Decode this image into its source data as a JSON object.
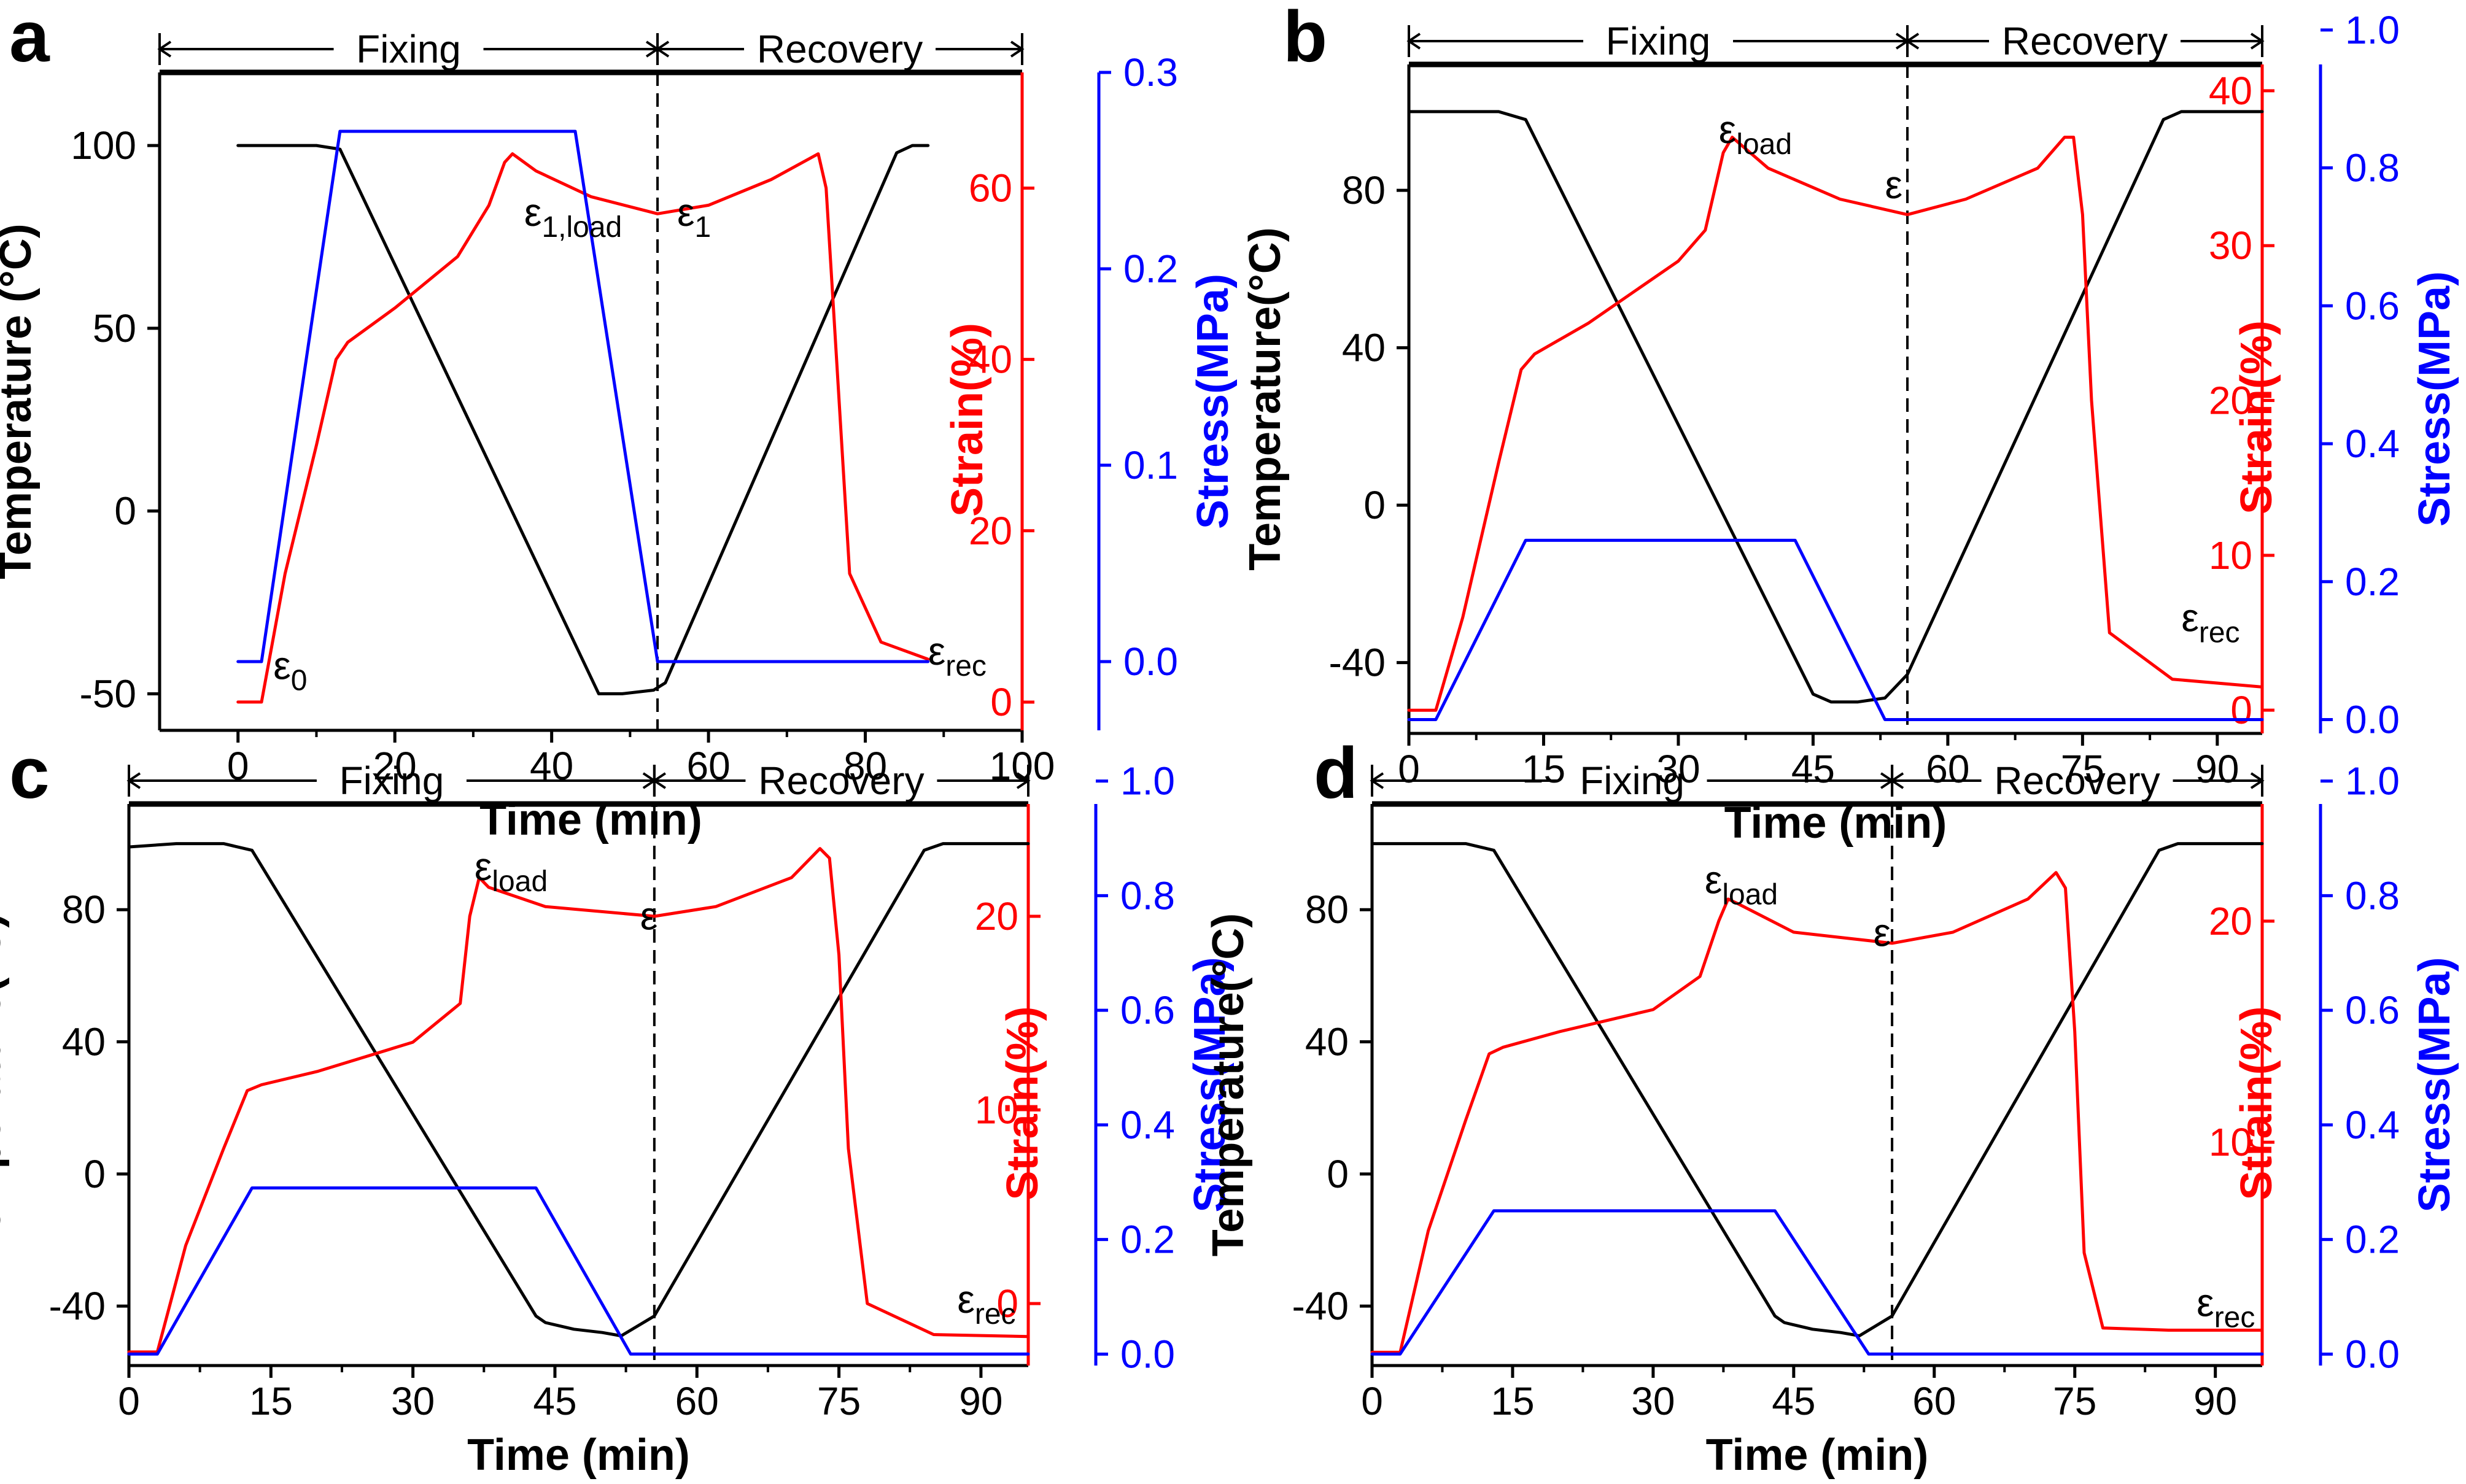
{
  "figure": {
    "colors": {
      "temperature": "#000000",
      "strain": "#ff0000",
      "stress": "#0000ff"
    },
    "phase_labels": {
      "fixing": "Fixing",
      "recovery": "Recovery"
    }
  },
  "chart_data": [
    {
      "panel_label": "a",
      "type": "line",
      "xlabel": "Time (min)",
      "xlim": [
        -10,
        100
      ],
      "xticks": [
        0,
        20,
        40,
        60,
        80,
        100
      ],
      "ylabel": "Temperature (°C)",
      "ylim": [
        -60,
        120
      ],
      "yticks": [
        -50,
        0,
        50,
        100
      ],
      "strain_axis": {
        "label": "Strain(%)",
        "lim": [
          -3.3,
          73.5
        ],
        "ticks": [
          0,
          20,
          40,
          60
        ]
      },
      "stress_axis": {
        "label": "Stress(MPa)",
        "lim": [
          -0.035,
          0.3
        ],
        "ticks": [
          0.0,
          0.1,
          0.2,
          0.3
        ]
      },
      "divider_x": 53.5,
      "annotations": [
        {
          "base": "ε",
          "sub": "0",
          "x": 4.5,
          "y": -46
        },
        {
          "base": "ε",
          "sub": "1,load",
          "x": 36.5,
          "y": 78
        },
        {
          "base": "ε",
          "sub": "1",
          "x": 56,
          "y": 78
        },
        {
          "base": "ε",
          "sub": "rec",
          "x": 88,
          "y": -42
        }
      ],
      "series": [
        {
          "name": "Temperature",
          "axis": "temperature",
          "x": [
            0,
            5,
            10,
            13,
            46,
            49,
            53,
            54.5,
            84,
            86,
            88
          ],
          "y": [
            100,
            100,
            100,
            99,
            -50,
            -50,
            -49,
            -47,
            98,
            100,
            100
          ]
        },
        {
          "name": "Strain",
          "axis": "strain",
          "x": [
            0,
            3,
            6,
            10,
            12.5,
            14,
            20,
            28,
            32,
            34,
            35,
            38,
            45,
            53.5,
            60,
            68,
            72,
            74,
            75,
            76,
            78,
            82,
            88
          ],
          "y": [
            0,
            0,
            15,
            30,
            40,
            42,
            46,
            52,
            58,
            63,
            64,
            62,
            59,
            57,
            58,
            61,
            63,
            64,
            60,
            45,
            15,
            7,
            5
          ]
        },
        {
          "name": "Stress",
          "axis": "stress",
          "x": [
            0,
            3,
            13,
            43,
            53.5,
            88
          ],
          "y": [
            0,
            0,
            0.27,
            0.27,
            0,
            0
          ]
        }
      ]
    },
    {
      "panel_label": "b",
      "type": "line",
      "xlabel": "Time (min)",
      "xlim": [
        0,
        95
      ],
      "xticks": [
        0,
        15,
        30,
        45,
        60,
        75,
        90
      ],
      "ylabel": "Temperature(°C)",
      "ylim": [
        -58,
        112
      ],
      "yticks": [
        -40,
        0,
        40,
        80
      ],
      "strain_axis": {
        "label": "Strain(%)",
        "lim": [
          -1.5,
          41.7
        ],
        "ticks": [
          0,
          10,
          20,
          30,
          40
        ]
      },
      "stress_axis": {
        "label": "Stress(MPa)",
        "lim": [
          -0.02,
          0.95
        ],
        "ticks": [
          0.0,
          0.2,
          0.4,
          0.6,
          0.8,
          1.0
        ]
      },
      "divider_x": 55.5,
      "annotations": [
        {
          "base": "ε",
          "sub": "load",
          "x": 34.5,
          "y": 92
        },
        {
          "base": "ε",
          "sub": "",
          "x": 53,
          "y": 78
        },
        {
          "base": "ε",
          "sub": "rec",
          "x": 86,
          "y": -32
        }
      ],
      "series": [
        {
          "name": "Temperature",
          "axis": "temperature",
          "x": [
            0,
            5,
            10,
            13,
            45,
            47,
            50,
            53,
            55.5,
            84,
            86,
            95
          ],
          "y": [
            100,
            100,
            100,
            98,
            -48,
            -50,
            -50,
            -49,
            -43,
            98,
            100,
            100
          ]
        },
        {
          "name": "Strain",
          "axis": "strain",
          "x": [
            0,
            3,
            6,
            10,
            12.5,
            14,
            20,
            30,
            33,
            35,
            36,
            40,
            48,
            55.5,
            62,
            70,
            73,
            74,
            75,
            76,
            78,
            85,
            95
          ],
          "y": [
            0,
            0,
            6,
            16,
            22,
            23,
            25,
            29,
            31,
            36,
            37,
            35,
            33,
            32,
            33,
            35,
            37,
            37,
            32,
            20,
            5,
            2,
            1.5
          ]
        },
        {
          "name": "Stress",
          "axis": "stress",
          "x": [
            0,
            3,
            13,
            43,
            53,
            95
          ],
          "y": [
            0,
            0,
            0.26,
            0.26,
            0,
            0
          ]
        }
      ]
    },
    {
      "panel_label": "c",
      "type": "line",
      "xlabel": "Time (min)",
      "xlim": [
        0,
        95
      ],
      "xticks": [
        0,
        15,
        30,
        45,
        60,
        75,
        90
      ],
      "ylabel": "Temperature(°C)",
      "ylim": [
        -58,
        112
      ],
      "yticks": [
        -40,
        0,
        40,
        80
      ],
      "strain_axis": {
        "label": "Strain(%)",
        "lim": [
          -3.2,
          25.8
        ],
        "ticks": [
          0,
          10,
          20
        ]
      },
      "stress_axis": {
        "label": "Stress(MPa)",
        "lim": [
          -0.02,
          0.96
        ],
        "ticks": [
          0.0,
          0.2,
          0.4,
          0.6,
          0.8,
          1.0
        ]
      },
      "divider_x": 55.5,
      "annotations": [
        {
          "base": "ε",
          "sub": "load",
          "x": 36.5,
          "y": 89
        },
        {
          "base": "ε",
          "sub": "",
          "x": 54,
          "y": 74
        },
        {
          "base": "ε",
          "sub": "rec",
          "x": 87.5,
          "y": -42
        }
      ],
      "series": [
        {
          "name": "Temperature",
          "axis": "temperature",
          "x": [
            0,
            5,
            10,
            13,
            43,
            44,
            47,
            50,
            52,
            55.5,
            84,
            86,
            95
          ],
          "y": [
            99,
            100,
            100,
            98,
            -43,
            -45,
            -47,
            -48,
            -49,
            -43,
            98,
            100,
            100
          ]
        },
        {
          "name": "Strain",
          "axis": "strain",
          "x": [
            0,
            3,
            6,
            10,
            12.5,
            14,
            20,
            30,
            35,
            36,
            37,
            38,
            44,
            55.5,
            62,
            70,
            73,
            74,
            75,
            76,
            78,
            85,
            95
          ],
          "y": [
            -2.5,
            -2.5,
            3,
            8,
            11,
            11.3,
            12,
            13.5,
            15.5,
            20,
            22,
            21.5,
            20.5,
            20,
            20.5,
            22,
            23.5,
            23,
            18,
            8,
            0,
            -1.6,
            -1.7
          ]
        },
        {
          "name": "Stress",
          "axis": "stress",
          "x": [
            0,
            3,
            13,
            43,
            53,
            95
          ],
          "y": [
            0,
            0,
            0.29,
            0.29,
            0,
            0
          ]
        }
      ]
    },
    {
      "panel_label": "d",
      "type": "line",
      "xlabel": "Time (min)",
      "xlim": [
        0,
        95
      ],
      "xticks": [
        0,
        15,
        30,
        45,
        60,
        75,
        90
      ],
      "ylabel": "Temperature(°C)",
      "ylim": [
        -58,
        112
      ],
      "yticks": [
        -40,
        0,
        40,
        80
      ],
      "strain_axis": {
        "label": "Strain(%)",
        "lim": [
          -0.1,
          25.3
        ],
        "ticks": [
          10,
          20
        ]
      },
      "stress_axis": {
        "label": "Stress(MPa)",
        "lim": [
          -0.02,
          0.96
        ],
        "ticks": [
          0.0,
          0.2,
          0.4,
          0.6,
          0.8,
          1.0
        ]
      },
      "divider_x": 55.5,
      "annotations": [
        {
          "base": "ε",
          "sub": "load",
          "x": 35.5,
          "y": 85
        },
        {
          "base": "ε",
          "sub": "",
          "x": 53.5,
          "y": 69
        },
        {
          "base": "ε",
          "sub": "rec",
          "x": 88,
          "y": -43
        }
      ],
      "series": [
        {
          "name": "Temperature",
          "axis": "temperature",
          "x": [
            0,
            5,
            10,
            13,
            43,
            44,
            47,
            50,
            52,
            55.5,
            84,
            86,
            95
          ],
          "y": [
            100,
            100,
            100,
            98,
            -43,
            -45,
            -47,
            -48,
            -49,
            -43,
            98,
            100,
            100
          ]
        },
        {
          "name": "Strain",
          "axis": "strain",
          "x": [
            0,
            3,
            6,
            10,
            12.5,
            14,
            20,
            30,
            35,
            37,
            38,
            39,
            45,
            55.5,
            62,
            70,
            73,
            74,
            75,
            76,
            78,
            85,
            95
          ],
          "y": [
            0.5,
            0.5,
            6,
            11,
            14,
            14.3,
            15,
            16,
            17.5,
            20,
            21,
            20.8,
            19.5,
            19,
            19.5,
            21,
            22.2,
            21.5,
            15,
            5,
            1.6,
            1.5,
            1.5
          ]
        },
        {
          "name": "Stress",
          "axis": "stress",
          "x": [
            0,
            3,
            13,
            43,
            53,
            95
          ],
          "y": [
            0,
            0,
            0.25,
            0.25,
            0,
            0
          ]
        }
      ]
    }
  ]
}
